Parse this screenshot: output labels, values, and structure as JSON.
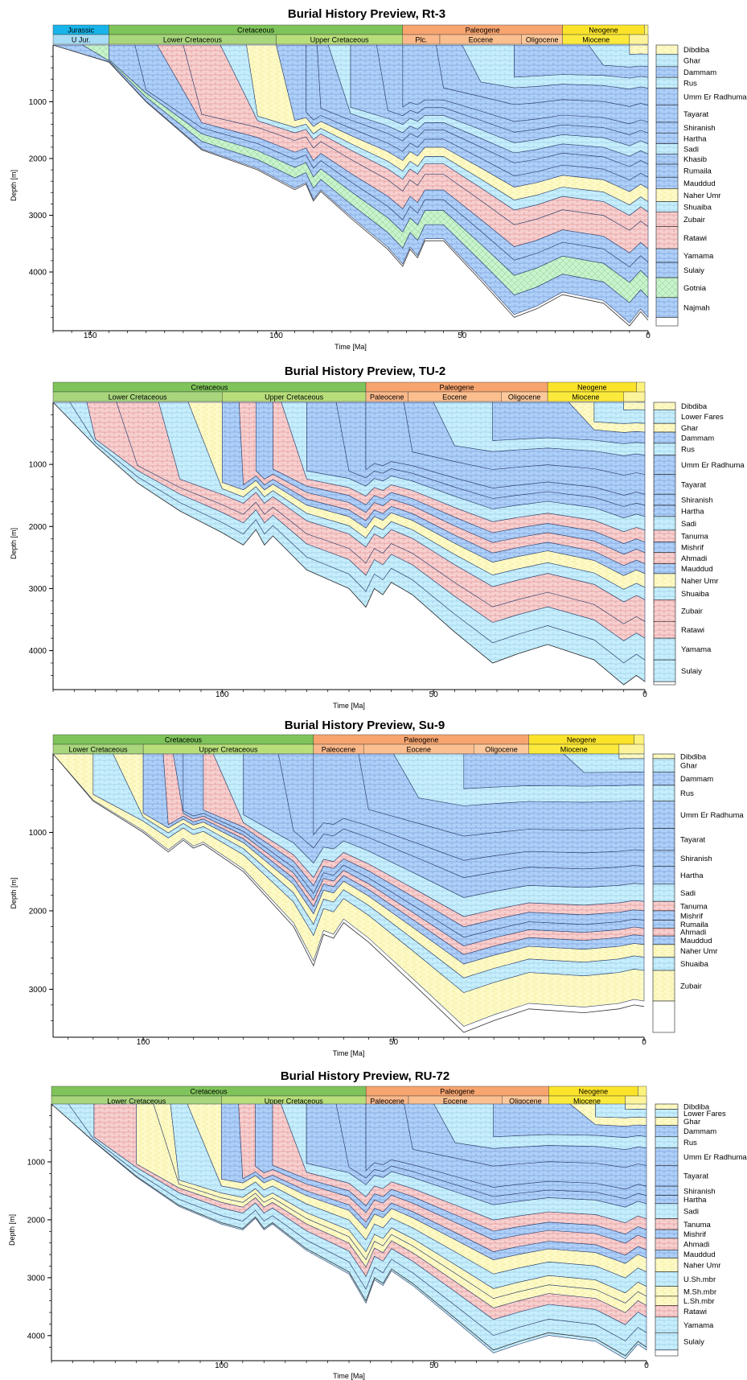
{
  "colors": {
    "Jurassic": "#18b4e9",
    "U Jur.": "#a8dcf4",
    "Cretaceous": "#7fc45a",
    "Lower Cretaceous": "#a9d67c",
    "Upper Cretaceous": "#b8de7a",
    "Paleogene": "#f7a46f",
    "Plc.": "#fbb98b",
    "Paleocene": "#fbb98b",
    "Eocene": "#fbbf8f",
    "Oligocene": "#fdc99c",
    "Neogene": "#fbe32a",
    "Miocene": "#fbea3c",
    "Quaternary": "#fcf27c",
    "blue": "#aecff8",
    "cyan": "#c6eefc",
    "pink": "#f7cfcf",
    "yellow": "#fdfac7",
    "green": "#c9f2cd"
  },
  "chart_data": [
    {
      "type": "area",
      "title": "Burial History Preview, Rt-3",
      "xlabel": "Time [Ma]",
      "ylabel": "Depth [m]",
      "xlim": [
        160,
        0
      ],
      "ylim": [
        0,
        4950
      ],
      "x_ticks": [
        150,
        100,
        50,
        0
      ],
      "y_ticks": [
        1000,
        2000,
        3000,
        4000
      ],
      "eras": [
        {
          "name": "Jurassic",
          "start": 160,
          "end": 145
        },
        {
          "name": "Cretaceous",
          "start": 145,
          "end": 66
        },
        {
          "name": "Paleogene",
          "start": 66,
          "end": 23
        },
        {
          "name": "Neogene",
          "start": 23,
          "end": 1
        }
      ],
      "epochs": [
        {
          "name": "U Jur.",
          "start": 160,
          "end": 145
        },
        {
          "name": "Lower Cretaceous",
          "start": 145,
          "end": 100
        },
        {
          "name": "Upper Cretaceous",
          "start": 100,
          "end": 66
        },
        {
          "name": "Plc.",
          "start": 66,
          "end": 56
        },
        {
          "name": "Eocene",
          "start": 56,
          "end": 34
        },
        {
          "name": "Oligocene",
          "start": 34,
          "end": 23
        },
        {
          "name": "Miocene",
          "start": 23,
          "end": 5
        }
      ],
      "x": [
        160,
        145,
        135,
        120,
        105,
        95,
        92,
        90,
        88,
        80,
        70,
        66,
        64,
        62,
        60,
        55,
        45,
        36,
        30,
        23,
        12,
        5,
        2,
        0
      ],
      "section": [
        0,
        300,
        1000,
        1850,
        2200,
        2550,
        2450,
        2750,
        2580,
        3050,
        3600,
        3900,
        3600,
        3750,
        3450,
        3450,
        4150,
        4800,
        4650,
        4400,
        4550,
        4950,
        4700,
        4850
      ],
      "horizons": [
        {
          "name": "Dibdiba",
          "depth": 160,
          "color": "yellow",
          "age": 5
        },
        {
          "name": "Ghar",
          "depth": 380,
          "color": "cyan",
          "age": 16
        },
        {
          "name": "Dammam",
          "depth": 570,
          "color": "blue",
          "age": 36
        },
        {
          "name": "Rus",
          "depth": 760,
          "color": "cyan",
          "age": 50
        },
        {
          "name": "Umm Er Radhuma",
          "depth": 1060,
          "color": "blue",
          "age": 57
        },
        {
          "name": "Tayarat",
          "depth": 1360,
          "color": "blue",
          "age": 66
        },
        {
          "name": "Shiranish",
          "depth": 1550,
          "color": "blue",
          "age": 73
        },
        {
          "name": "Hartha",
          "depth": 1740,
          "color": "blue",
          "age": 80
        },
        {
          "name": "Sadi",
          "depth": 1920,
          "color": "cyan",
          "age": 86
        },
        {
          "name": "Khasib",
          "depth": 2100,
          "color": "blue",
          "age": 89
        },
        {
          "name": "Rumaila",
          "depth": 2330,
          "color": "blue",
          "age": 92
        },
        {
          "name": "Mauddud",
          "depth": 2530,
          "color": "blue",
          "age": 100
        },
        {
          "name": "Naher Umr",
          "depth": 2760,
          "color": "yellow",
          "age": 108
        },
        {
          "name": "Shuaiba",
          "depth": 2940,
          "color": "cyan",
          "age": 115
        },
        {
          "name": "Zubair",
          "depth": 3200,
          "color": "pink",
          "age": 125
        },
        {
          "name": "Ratawi",
          "depth": 3590,
          "color": "pink",
          "age": 132
        },
        {
          "name": "Yamama",
          "depth": 3830,
          "color": "blue",
          "age": 138
        },
        {
          "name": "Sulaiy",
          "depth": 4100,
          "color": "blue",
          "age": 145
        },
        {
          "name": "Gotnia",
          "depth": 4450,
          "color": "green",
          "age": 152
        },
        {
          "name": "Najmah",
          "depth": 4800,
          "color": "blue",
          "age": 160
        }
      ]
    },
    {
      "type": "area",
      "title": "Burial History Preview, TU-2",
      "xlabel": "Time [Ma]",
      "ylabel": "Depth [m]",
      "xlim": [
        140,
        0
      ],
      "ylim": [
        0,
        4550
      ],
      "x_ticks": [
        100,
        50,
        0
      ],
      "y_ticks": [
        1000,
        2000,
        3000,
        4000
      ],
      "eras": [
        {
          "name": "Cretaceous",
          "start": 140,
          "end": 66
        },
        {
          "name": "Paleogene",
          "start": 66,
          "end": 23
        },
        {
          "name": "Neogene",
          "start": 23,
          "end": 2
        }
      ],
      "epochs": [
        {
          "name": "Lower Cretaceous",
          "start": 140,
          "end": 100
        },
        {
          "name": "Upper Cretaceous",
          "start": 100,
          "end": 66
        },
        {
          "name": "Paleocene",
          "start": 66,
          "end": 56
        },
        {
          "name": "Eocene",
          "start": 56,
          "end": 34
        },
        {
          "name": "Oligocene",
          "start": 34,
          "end": 23
        },
        {
          "name": "Miocene",
          "start": 23,
          "end": 5
        }
      ],
      "x": [
        140,
        130,
        120,
        110,
        100,
        95,
        92,
        90,
        88,
        80,
        70,
        66,
        64,
        62,
        60,
        55,
        45,
        36,
        30,
        23,
        12,
        5,
        2,
        0
      ],
      "section": [
        0,
        700,
        1300,
        1750,
        2100,
        2300,
        2050,
        2300,
        2150,
        2700,
        3000,
        3300,
        3000,
        3100,
        2900,
        3100,
        3700,
        4200,
        4050,
        3900,
        4150,
        4550,
        4400,
        4500
      ],
      "horizons": [
        {
          "name": "Dibdiba",
          "depth": 120,
          "color": "yellow",
          "age": 5
        },
        {
          "name": "Lower Fares",
          "depth": 340,
          "color": "cyan",
          "age": 12
        },
        {
          "name": "Ghar",
          "depth": 480,
          "color": "yellow",
          "age": 18
        },
        {
          "name": "Dammam",
          "depth": 660,
          "color": "blue",
          "age": 36
        },
        {
          "name": "Rus",
          "depth": 850,
          "color": "cyan",
          "age": 50
        },
        {
          "name": "Umm Er Radhuma",
          "depth": 1160,
          "color": "blue",
          "age": 57
        },
        {
          "name": "Tayarat",
          "depth": 1480,
          "color": "blue",
          "age": 66
        },
        {
          "name": "Shiranish",
          "depth": 1660,
          "color": "blue",
          "age": 73
        },
        {
          "name": "Hartha",
          "depth": 1840,
          "color": "blue",
          "age": 80
        },
        {
          "name": "Sadi",
          "depth": 2060,
          "color": "cyan",
          "age": 86
        },
        {
          "name": "Tanuma",
          "depth": 2250,
          "color": "pink",
          "age": 88
        },
        {
          "name": "Mishrif",
          "depth": 2420,
          "color": "blue",
          "age": 92
        },
        {
          "name": "Ahmadi",
          "depth": 2600,
          "color": "pink",
          "age": 96
        },
        {
          "name": "Mauddud",
          "depth": 2760,
          "color": "blue",
          "age": 100
        },
        {
          "name": "Naher Umr",
          "depth": 2980,
          "color": "yellow",
          "age": 108
        },
        {
          "name": "Shuaiba",
          "depth": 3180,
          "color": "cyan",
          "age": 115
        },
        {
          "name": "Zubair",
          "depth": 3530,
          "color": "pink",
          "age": 125
        },
        {
          "name": "Ratawi",
          "depth": 3800,
          "color": "pink",
          "age": 132
        },
        {
          "name": "Yamama",
          "depth": 4150,
          "color": "cyan",
          "age": 136
        },
        {
          "name": "Sulaiy",
          "depth": 4500,
          "color": "cyan",
          "age": 140
        }
      ]
    },
    {
      "type": "area",
      "title": "Burial History Preview, Su-9",
      "xlabel": "Time [Ma]",
      "ylabel": "Depth [m]",
      "xlim": [
        118,
        0
      ],
      "ylim": [
        0,
        3550
      ],
      "x_ticks": [
        100,
        50,
        0
      ],
      "y_ticks": [
        1000,
        2000,
        3000
      ],
      "eras": [
        {
          "name": "Cretaceous",
          "start": 118,
          "end": 66
        },
        {
          "name": "Paleogene",
          "start": 66,
          "end": 23
        },
        {
          "name": "Neogene",
          "start": 23,
          "end": 2
        }
      ],
      "epochs": [
        {
          "name": "Lower Cretaceous",
          "start": 118,
          "end": 100
        },
        {
          "name": "Upper Cretaceous",
          "start": 100,
          "end": 66
        },
        {
          "name": "Paleocene",
          "start": 66,
          "end": 56
        },
        {
          "name": "Eocene",
          "start": 56,
          "end": 34
        },
        {
          "name": "Oligocene",
          "start": 34,
          "end": 23
        },
        {
          "name": "Miocene",
          "start": 23,
          "end": 5
        }
      ],
      "x": [
        118,
        110,
        100,
        95,
        92,
        90,
        88,
        80,
        70,
        66,
        64,
        62,
        60,
        55,
        45,
        36,
        30,
        23,
        12,
        5,
        2,
        0
      ],
      "section": [
        0,
        600,
        1000,
        1250,
        1100,
        1200,
        1150,
        1500,
        2200,
        2700,
        2300,
        2350,
        2150,
        2400,
        3000,
        3550,
        3400,
        3250,
        3300,
        3250,
        3200,
        3220
      ],
      "horizons": [
        {
          "name": "Dibdiba",
          "depth": 60,
          "color": "yellow",
          "age": 5
        },
        {
          "name": "Ghar",
          "depth": 230,
          "color": "cyan",
          "age": 16
        },
        {
          "name": "Dammam",
          "depth": 400,
          "color": "blue",
          "age": 36
        },
        {
          "name": "Rus",
          "depth": 600,
          "color": "cyan",
          "age": 50
        },
        {
          "name": "Umm Er Radhuma",
          "depth": 950,
          "color": "blue",
          "age": 57
        },
        {
          "name": "Tayarat",
          "depth": 1230,
          "color": "blue",
          "age": 66
        },
        {
          "name": "Shiranish",
          "depth": 1430,
          "color": "blue",
          "age": 73
        },
        {
          "name": "Hartha",
          "depth": 1660,
          "color": "blue",
          "age": 80
        },
        {
          "name": "Sadi",
          "depth": 1880,
          "color": "cyan",
          "age": 86
        },
        {
          "name": "Tanuma",
          "depth": 2000,
          "color": "pink",
          "age": 88
        },
        {
          "name": "Mishrif",
          "depth": 2120,
          "color": "blue",
          "age": 92
        },
        {
          "name": "Rumaila",
          "depth": 2220,
          "color": "blue",
          "age": 94
        },
        {
          "name": "Ahmadi",
          "depth": 2320,
          "color": "pink",
          "age": 96
        },
        {
          "name": "Mauddud",
          "depth": 2430,
          "color": "blue",
          "age": 100
        },
        {
          "name": "Naher Umr",
          "depth": 2590,
          "color": "yellow",
          "age": 106
        },
        {
          "name": "Shuaiba",
          "depth": 2760,
          "color": "cyan",
          "age": 110
        },
        {
          "name": "Zubair",
          "depth": 3150,
          "color": "yellow",
          "age": 118
        }
      ]
    },
    {
      "type": "area",
      "title": "Burial History Preview, RU-72",
      "xlabel": "Time [Ma]",
      "ylabel": "Depth [m]",
      "xlim": [
        140,
        0
      ],
      "ylim": [
        0,
        4350
      ],
      "x_ticks": [
        100,
        50,
        0
      ],
      "y_ticks": [
        1000,
        2000,
        3000,
        4000
      ],
      "eras": [
        {
          "name": "Cretaceous",
          "start": 140,
          "end": 66
        },
        {
          "name": "Paleogene",
          "start": 66,
          "end": 23
        },
        {
          "name": "Neogene",
          "start": 23,
          "end": 2
        }
      ],
      "epochs": [
        {
          "name": "Lower Cretaceous",
          "start": 140,
          "end": 100
        },
        {
          "name": "Upper Cretaceous",
          "start": 100,
          "end": 66
        },
        {
          "name": "Paleocene",
          "start": 66,
          "end": 56
        },
        {
          "name": "Eocene",
          "start": 56,
          "end": 34
        },
        {
          "name": "Oligocene",
          "start": 34,
          "end": 23
        },
        {
          "name": "Miocene",
          "start": 23,
          "end": 5
        }
      ],
      "x": [
        140,
        130,
        120,
        110,
        100,
        95,
        92,
        90,
        88,
        80,
        70,
        66,
        64,
        62,
        60,
        55,
        45,
        36,
        30,
        23,
        12,
        5,
        2,
        0
      ],
      "section": [
        0,
        650,
        1250,
        1750,
        2050,
        2150,
        1950,
        2150,
        2050,
        2500,
        2900,
        3400,
        3000,
        3100,
        2850,
        3100,
        3700,
        4250,
        4100,
        3950,
        4050,
        4350,
        4100,
        4200
      ],
      "horizons": [
        {
          "name": "Dibdiba",
          "depth": 90,
          "color": "yellow",
          "age": 5
        },
        {
          "name": "Lower Fares",
          "depth": 230,
          "color": "cyan",
          "age": 12
        },
        {
          "name": "Ghar",
          "depth": 370,
          "color": "yellow",
          "age": 18
        },
        {
          "name": "Dammam",
          "depth": 560,
          "color": "blue",
          "age": 36
        },
        {
          "name": "Rus",
          "depth": 760,
          "color": "cyan",
          "age": 50
        },
        {
          "name": "Umm Er Radhuma",
          "depth": 1060,
          "color": "blue",
          "age": 57
        },
        {
          "name": "Tayarat",
          "depth": 1420,
          "color": "blue",
          "age": 66
        },
        {
          "name": "Shiranish",
          "depth": 1580,
          "color": "blue",
          "age": 73
        },
        {
          "name": "Hartha",
          "depth": 1720,
          "color": "blue",
          "age": 80
        },
        {
          "name": "Sadi",
          "depth": 1980,
          "color": "cyan",
          "age": 86
        },
        {
          "name": "Tanuma",
          "depth": 2170,
          "color": "pink",
          "age": 88
        },
        {
          "name": "Mishrif",
          "depth": 2320,
          "color": "blue",
          "age": 92
        },
        {
          "name": "Ahmadi",
          "depth": 2520,
          "color": "pink",
          "age": 96
        },
        {
          "name": "Mauddud",
          "depth": 2660,
          "color": "blue",
          "age": 100
        },
        {
          "name": "Naher Umr",
          "depth": 2900,
          "color": "yellow",
          "age": 108
        },
        {
          "name": "U.Sh.mbr",
          "depth": 3150,
          "color": "cyan",
          "age": 112
        },
        {
          "name": "M.Sh.mbr",
          "depth": 3320,
          "color": "yellow",
          "age": 116
        },
        {
          "name": "L.Sh.mbr",
          "depth": 3480,
          "color": "yellow",
          "age": 120
        },
        {
          "name": "Ratawi",
          "depth": 3680,
          "color": "pink",
          "age": 130
        },
        {
          "name": "Yamama",
          "depth": 3950,
          "color": "cyan",
          "age": 136
        },
        {
          "name": "Sulaiy",
          "depth": 4250,
          "color": "cyan",
          "age": 140
        }
      ]
    }
  ]
}
